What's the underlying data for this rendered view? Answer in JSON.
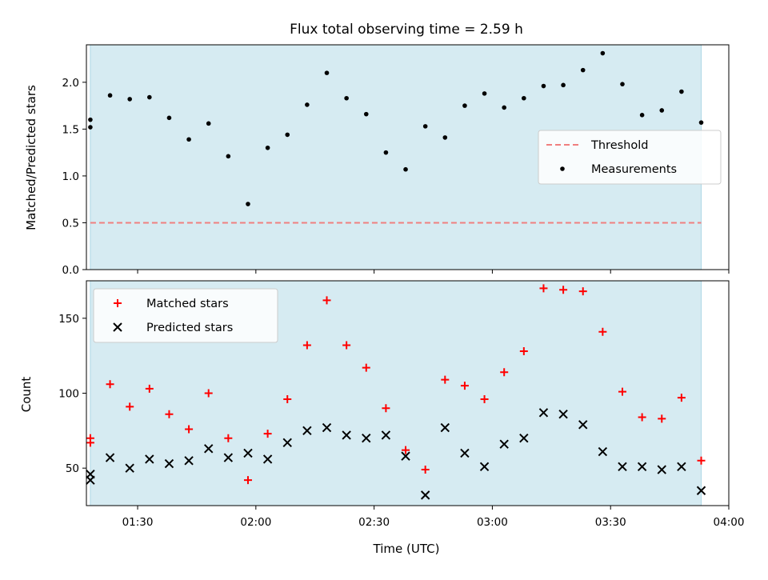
{
  "chart_data": [
    {
      "type": "scatter",
      "title": "Flux total observing time = 2.59 h",
      "ylabel": "Matched/Predicted stars",
      "xlim": [
        "01:17",
        "04:00"
      ],
      "ylim": [
        0,
        2.4
      ],
      "y_ticks": [
        0.0,
        0.5,
        1.0,
        1.5,
        2.0
      ],
      "y_tick_labels": [
        "0.0",
        "0.5",
        "1.0",
        "1.5",
        "2.0"
      ],
      "shaded_span": [
        "01:18",
        "03:53"
      ],
      "legend_position": "center-right",
      "threshold": {
        "name": "Threshold",
        "value": 0.5,
        "color": "#f07f7f"
      },
      "series": [
        {
          "name": "Measurements",
          "color": "#000000",
          "x": [
            "01:18",
            "01:18",
            "01:23",
            "01:28",
            "01:33",
            "01:38",
            "01:43",
            "01:48",
            "01:53",
            "01:58",
            "02:03",
            "02:08",
            "02:13",
            "02:18",
            "02:23",
            "02:28",
            "02:33",
            "02:38",
            "02:43",
            "02:48",
            "02:53",
            "02:58",
            "03:03",
            "03:08",
            "03:13",
            "03:18",
            "03:23",
            "03:28",
            "03:33",
            "03:38",
            "03:43",
            "03:48",
            "03:53"
          ],
          "y": [
            1.52,
            1.6,
            1.86,
            1.82,
            1.84,
            1.62,
            1.39,
            1.56,
            1.21,
            0.7,
            1.3,
            1.44,
            1.76,
            2.1,
            1.83,
            1.66,
            1.25,
            1.07,
            1.53,
            1.41,
            1.75,
            1.88,
            1.73,
            1.83,
            1.96,
            1.97,
            2.13,
            2.31,
            1.98,
            1.65,
            1.7,
            1.9,
            1.57
          ]
        }
      ]
    },
    {
      "type": "scatter",
      "xlabel": "Time (UTC)",
      "ylabel": "Count",
      "xlim": [
        "01:17",
        "04:00"
      ],
      "ylim": [
        25,
        175
      ],
      "x_ticks": [
        "01:30",
        "02:00",
        "02:30",
        "03:00",
        "03:30",
        "04:00"
      ],
      "y_ticks": [
        50,
        100,
        150
      ],
      "y_tick_labels": [
        "50",
        "100",
        "150"
      ],
      "shaded_span": [
        "01:18",
        "03:53"
      ],
      "legend_position": "upper-left",
      "series": [
        {
          "name": "Matched stars",
          "marker": "plus",
          "color": "#ff0000",
          "x": [
            "01:18",
            "01:18",
            "01:23",
            "01:28",
            "01:33",
            "01:38",
            "01:43",
            "01:48",
            "01:53",
            "01:58",
            "02:03",
            "02:08",
            "02:13",
            "02:18",
            "02:23",
            "02:28",
            "02:33",
            "02:38",
            "02:43",
            "02:48",
            "02:53",
            "02:58",
            "03:03",
            "03:08",
            "03:13",
            "03:18",
            "03:23",
            "03:28",
            "03:33",
            "03:38",
            "03:43",
            "03:48",
            "03:53"
          ],
          "y": [
            70,
            67,
            106,
            91,
            103,
            86,
            76,
            100,
            70,
            42,
            73,
            96,
            132,
            162,
            132,
            117,
            90,
            62,
            49,
            109,
            105,
            96,
            114,
            128,
            170,
            169,
            168,
            141,
            101,
            84,
            83,
            97,
            55
          ]
        },
        {
          "name": "Predicted stars",
          "marker": "x",
          "color": "#000000",
          "x": [
            "01:18",
            "01:18",
            "01:23",
            "01:28",
            "01:33",
            "01:38",
            "01:43",
            "01:48",
            "01:53",
            "01:58",
            "02:03",
            "02:08",
            "02:13",
            "02:18",
            "02:23",
            "02:28",
            "02:33",
            "02:38",
            "02:43",
            "02:48",
            "02:53",
            "02:58",
            "03:03",
            "03:08",
            "03:13",
            "03:18",
            "03:23",
            "03:28",
            "03:33",
            "03:38",
            "03:43",
            "03:48",
            "03:53"
          ],
          "y": [
            46,
            42,
            57,
            50,
            56,
            53,
            55,
            63,
            57,
            60,
            56,
            67,
            75,
            77,
            72,
            70,
            72,
            58,
            32,
            77,
            60,
            51,
            66,
            70,
            87,
            86,
            79,
            61,
            51,
            51,
            49,
            51,
            35
          ]
        }
      ]
    }
  ]
}
